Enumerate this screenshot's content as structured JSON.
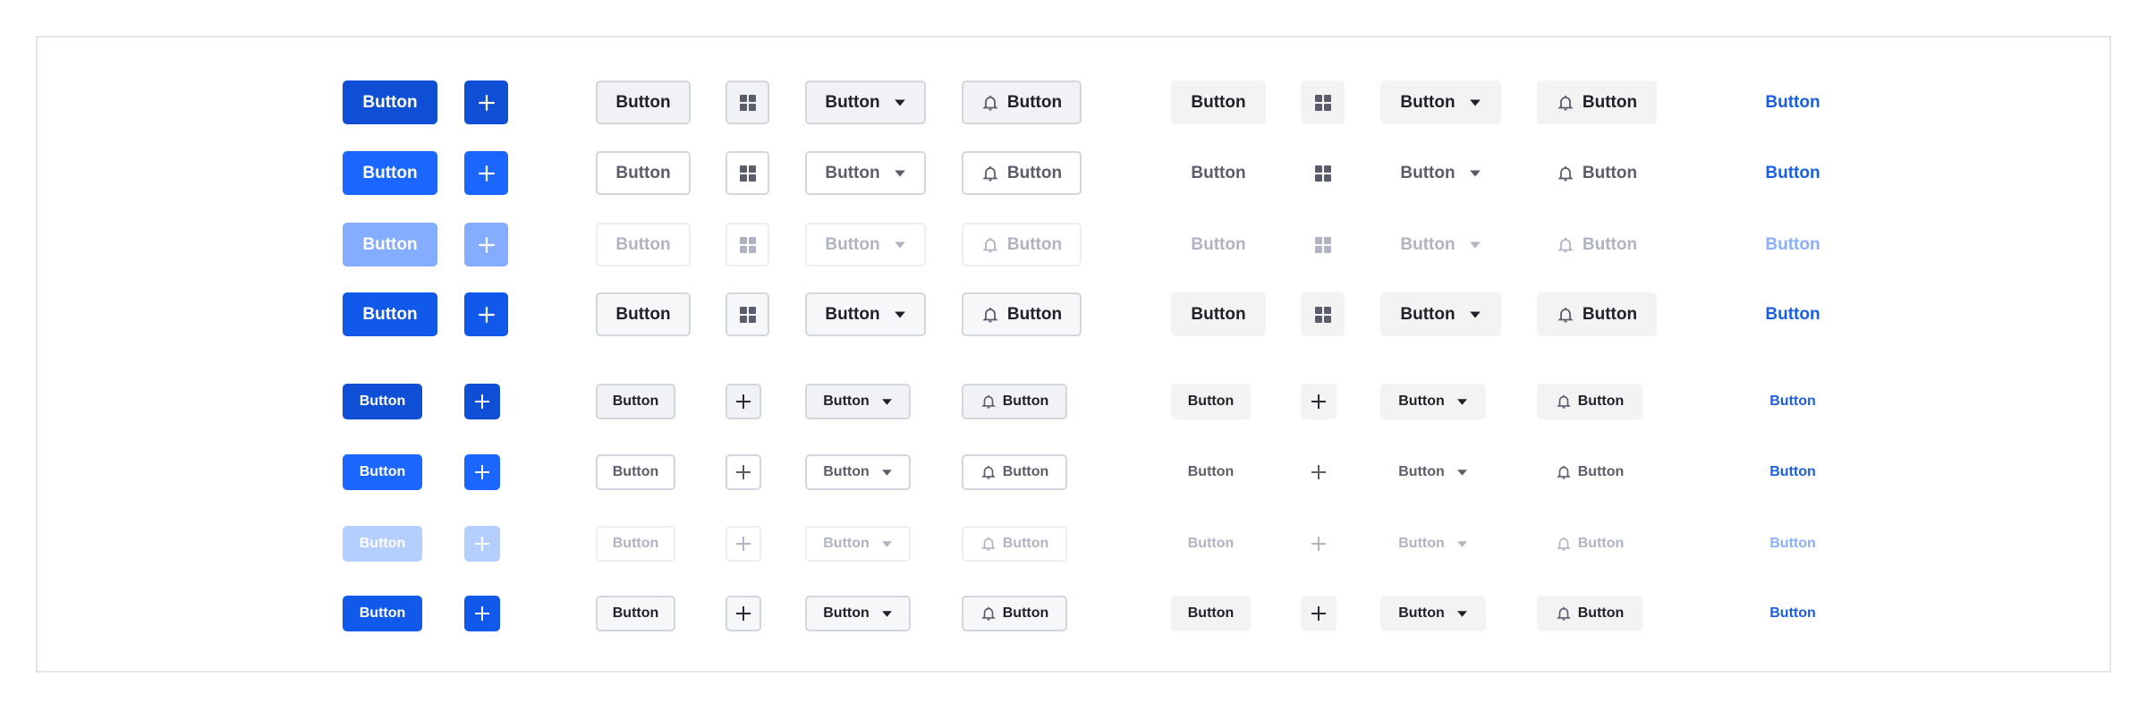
{
  "button_label": "Button",
  "icons": {
    "plus": "plus-icon",
    "grid": "grid-icon",
    "caret": "caret-down-icon",
    "bell": "bell-icon"
  },
  "colors": {
    "primary": "#1a66ff",
    "primary_dark": "#0f4fd6",
    "primary_disabled": "#85adff",
    "text_dark": "#1f2028",
    "text_muted": "#5b5d6b",
    "text_disabled": "#b0b3c2",
    "link": "#1a5ee8",
    "border": "#d4d6dd"
  },
  "groups": [
    {
      "size": "large",
      "rows": 4,
      "secondary_icon": "grid",
      "tertiary_icon": "grid"
    },
    {
      "size": "small",
      "rows": 4,
      "secondary_icon": "plus",
      "tertiary_icon": "plus"
    }
  ]
}
